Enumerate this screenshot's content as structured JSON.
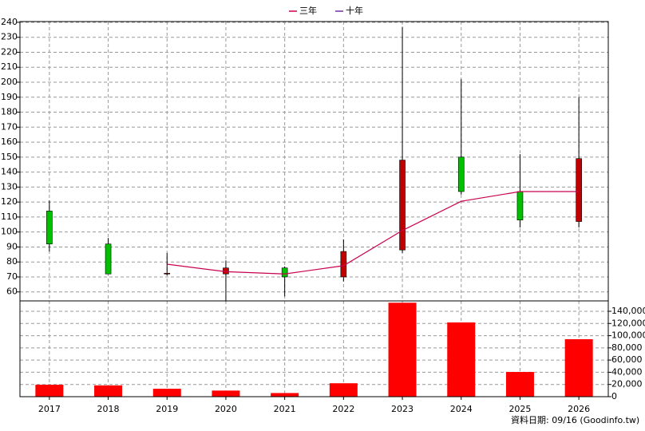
{
  "chart_data": [
    {
      "type": "candlestick",
      "categories": [
        "2017",
        "2018",
        "2019",
        "2020",
        "2021",
        "2022",
        "2023",
        "2024",
        "2025",
        "2026"
      ],
      "open": [
        114,
        92,
        72,
        72,
        76,
        70,
        88,
        150,
        127,
        107
      ],
      "high": [
        121,
        96,
        86,
        81,
        77,
        95,
        237,
        202,
        152,
        190
      ],
      "low": [
        87,
        72,
        71,
        53,
        57,
        67,
        86,
        125,
        103,
        103
      ],
      "close": [
        92,
        72,
        72.5,
        76,
        70,
        87,
        148,
        127,
        108,
        149
      ],
      "up_color": "#c00000",
      "down_color": "#00c000",
      "wick_color": "#000000",
      "series": [
        {
          "name": "三年",
          "color": "#c8004f",
          "values": [
            null,
            null,
            78.5,
            73.5,
            72,
            77.5,
            101,
            120.5,
            127,
            127
          ]
        },
        {
          "name": "十年",
          "color": "#7030a0",
          "values": [
            null,
            null,
            null,
            null,
            null,
            null,
            null,
            null,
            null,
            null
          ]
        }
      ],
      "ylim": [
        54,
        240.5
      ],
      "yticks": [
        60,
        70,
        80,
        90,
        100,
        110,
        120,
        130,
        140,
        150,
        160,
        170,
        180,
        190,
        200,
        210,
        220,
        230,
        240
      ],
      "grid": true
    },
    {
      "type": "bar",
      "categories": [
        "2017",
        "2018",
        "2019",
        "2020",
        "2021",
        "2022",
        "2023",
        "2024",
        "2025",
        "2026"
      ],
      "values": [
        19600,
        18500,
        13000,
        10000,
        6000,
        22000,
        154000,
        121700,
        40500,
        94200
      ],
      "color": "#ff0000",
      "ylim": [
        0,
        157000
      ],
      "yticks": [
        0,
        {
          "value": 20000,
          "label": "20,000"
        },
        {
          "value": 40000,
          "label": "40,000"
        },
        {
          "value": 60000,
          "label": "60,000"
        },
        {
          "value": 80000,
          "label": "80,000"
        },
        {
          "value": 100000,
          "label": "100,000"
        },
        {
          "value": 120000,
          "label": "120,000"
        },
        {
          "value": 140000,
          "label": "140,000"
        }
      ],
      "grid": true,
      "note": "資料日期: 09/16 (Goodinfo.tw)"
    }
  ]
}
